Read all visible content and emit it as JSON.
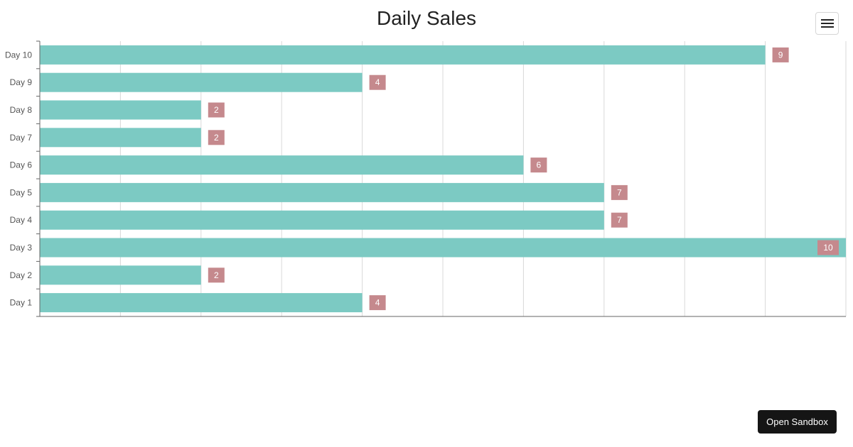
{
  "header": {
    "menu_icon": "hamburger-menu-icon"
  },
  "footer": {
    "sandbox_label": "Open Sandbox"
  },
  "colors": {
    "bar": "#7ccac3",
    "label_bg": "#c5898d",
    "label_text": "#ffffff",
    "grid": "#d9d9d9",
    "axis": "#666666"
  },
  "chart_data": {
    "type": "bar",
    "orientation": "horizontal",
    "title": "Daily Sales",
    "categories": [
      "Day 10",
      "Day 9",
      "Day 8",
      "Day 7",
      "Day 6",
      "Day 5",
      "Day 4",
      "Day 3",
      "Day 2",
      "Day 1"
    ],
    "values": [
      9,
      4,
      2,
      2,
      6,
      7,
      7,
      10,
      2,
      4
    ],
    "xlim": [
      0,
      10
    ],
    "grid": true,
    "data_labels": true,
    "xlabel": "",
    "ylabel": ""
  }
}
